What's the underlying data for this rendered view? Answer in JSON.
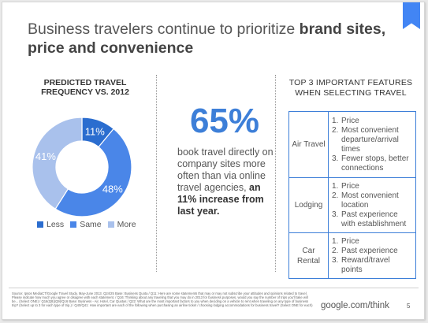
{
  "slide": {
    "title_plain": "Business travelers continue to prioritize ",
    "title_bold": "brand sites, price and convenience",
    "page_number": "5",
    "brand_url": "google.com/think",
    "footnote": "Source: Ipsos MediaCT/Google Travel Study, May-June 2013. Q24/25 Base: Business Quota / Q11: Here are some statements that may or may not subscribe your attitudes and opinions related to travel. Please indicate how much you agree or disagree with each statement. / Q16: Thinking about any traveling that you may do in 2013 for business purposes, would you say the number of trips you'll take will be... (Select ONE) / Q16(Q8)(Q9)/Q16 Base: Business - Air, Hotel, Car Quotas / Q22: What are the most important factors to you when deciding on a vehicle to rent when traveling on any type of business trip? (Select up to 3 for each type of trip.) / Q40/Q41: How important are each of the following when purchasing an airline ticket / choosing lodging accommodations for business travel? (Select ONE for each)"
  },
  "colors": {
    "accent": "#3d7fd8",
    "less": "#2b6dcf",
    "same": "#4a86e8",
    "more": "#a9c1ec",
    "bookmark": "#4285f4"
  },
  "chart_data": {
    "type": "pie",
    "title": "PREDICTED TRAVEL FREQUENCY VS. 2012",
    "categories": [
      "Less",
      "Same",
      "More"
    ],
    "values": [
      11,
      48,
      41
    ],
    "data_labels": [
      "11%",
      "48%",
      "41%"
    ],
    "donut": true,
    "legend_position": "bottom"
  },
  "stat": {
    "value": "65%",
    "text_plain": "book travel directly on company sites more often than via online travel agencies,",
    "text_bold": " an 11% increase from last year."
  },
  "features": {
    "title": "TOP 3 IMPORTANT FEATURES WHEN SELECTING TRAVEL",
    "rows": [
      {
        "category": "Air Travel",
        "items": [
          "Price",
          "Most convenient departure/arrival times",
          "Fewer stops, better connections"
        ]
      },
      {
        "category": "Lodging",
        "items": [
          "Price",
          "Most convenient location",
          "Past experience with establishment"
        ]
      },
      {
        "category": "Car Rental",
        "items": [
          "Price",
          "Past experience",
          "Reward/travel points"
        ]
      }
    ]
  }
}
